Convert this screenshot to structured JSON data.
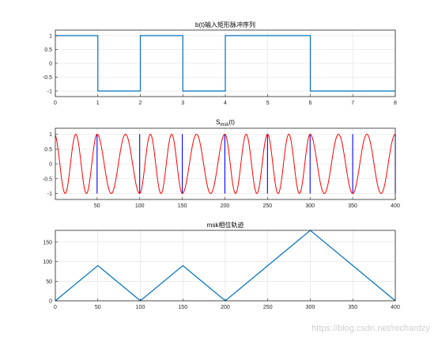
{
  "chart_data": [
    {
      "type": "line",
      "title": "b(t)输入矩形脉冲序列",
      "xlim": [
        0,
        8
      ],
      "ylim": [
        -1.2,
        1.2
      ],
      "xticks": [
        0,
        1,
        2,
        3,
        4,
        5,
        6,
        7,
        8
      ],
      "yticks": [
        -1,
        -0.5,
        0,
        0.5,
        1
      ],
      "ytick_labels": [
        "-1",
        "-0.5",
        "0",
        "0.5",
        "1"
      ],
      "grid": true,
      "color": "#0072BD",
      "series": [
        {
          "x": [
            0,
            1,
            1,
            2,
            2,
            3,
            3,
            4,
            4,
            6,
            6,
            8
          ],
          "y": [
            1,
            1,
            -1,
            -1,
            1,
            1,
            -1,
            -1,
            1,
            1,
            -1,
            -1
          ]
        }
      ]
    },
    {
      "type": "line",
      "title_main": "S",
      "title_sub": "msk",
      "title_tail": "(t)",
      "xlim": [
        1,
        400
      ],
      "ylim": [
        -1.2,
        1.2
      ],
      "xticks": [
        50,
        100,
        150,
        200,
        250,
        300,
        350,
        400
      ],
      "yticks": [
        -1,
        -0.5,
        0,
        0.5,
        1
      ],
      "ytick_labels": [
        "-1",
        "-0.5",
        "0",
        "0.5",
        "1"
      ],
      "grid": true,
      "color": "#FF0000",
      "marker_color": "#0000FF",
      "bit_boundaries": [
        50,
        100,
        150,
        200,
        250,
        300,
        350,
        400
      ],
      "bits": [
        1,
        -1,
        1,
        -1,
        1,
        1,
        -1,
        -1
      ],
      "samples_per_bit": 50,
      "carrier_cycles_per_bit": 1.5
    },
    {
      "type": "line",
      "title": "msk相位轨迹",
      "xlim": [
        0,
        400
      ],
      "ylim": [
        0,
        180
      ],
      "xticks": [
        0,
        50,
        100,
        150,
        200,
        250,
        300,
        350,
        400
      ],
      "yticks": [
        0,
        50,
        100,
        150
      ],
      "grid": true,
      "color": "#0072BD",
      "series": [
        {
          "x": [
            0,
            50,
            100,
            150,
            200,
            250,
            300,
            350,
            400
          ],
          "y": [
            0,
            90,
            0,
            90,
            0,
            90,
            180,
            90,
            0
          ]
        }
      ]
    }
  ],
  "watermark": "https://blog.csdn.net/rechardzy"
}
